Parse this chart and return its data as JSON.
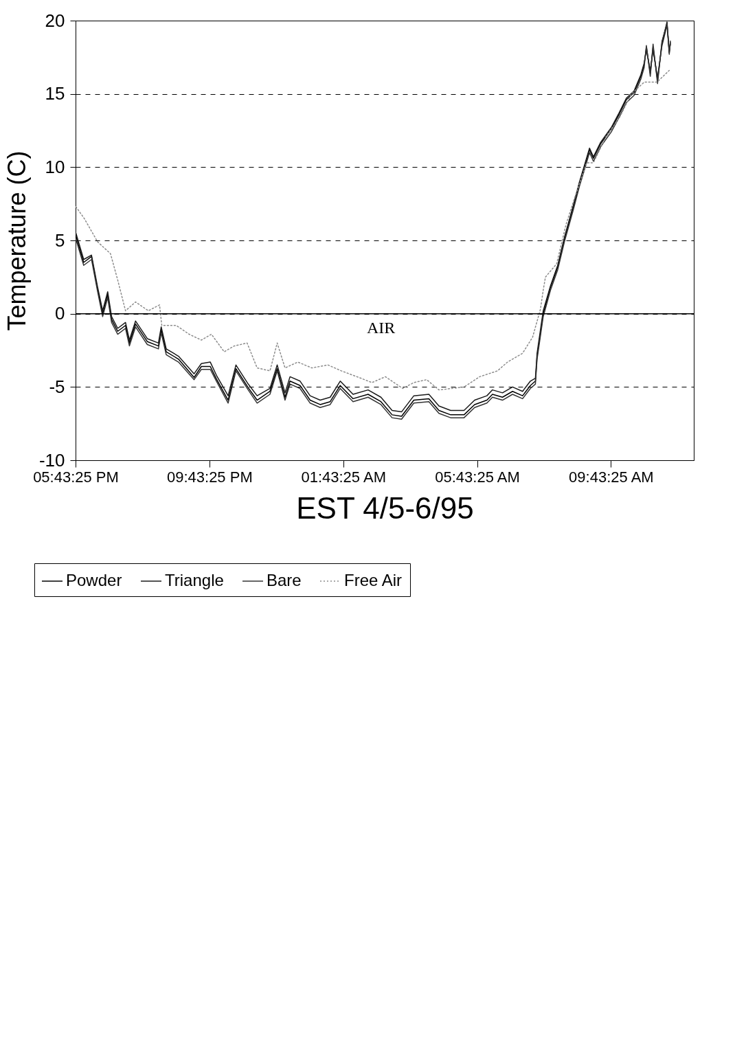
{
  "chart_data": {
    "type": "line",
    "xlabel": "EST 4/5-6/95",
    "ylabel": "Temperature (C)",
    "annotations": [
      "AIR"
    ],
    "x": [
      "--04-05T17:44",
      "--04-05T17:58",
      "--04-05T18:12",
      "--04-05T18:23",
      "--04-05T18:32",
      "--04-05T18:41",
      "--04-05T18:48",
      "--04-05T18:59",
      "--04-05T19:13",
      "--04-05T19:20",
      "--04-05T19:31",
      "--04-05T19:52",
      "--04-05T20:12",
      "--04-05T20:17",
      "--04-05T20:26",
      "--04-05T20:48",
      "--04-05T21:16",
      "--04-05T21:29",
      "--04-05T21:45",
      "--04-05T21:56",
      "--04-05T22:17",
      "--04-05T22:31",
      "--04-05T22:53",
      "--04-05T23:09",
      "--04-05T23:32",
      "--04-05T23:45",
      "--04-05T23:59",
      "--04-06T00:08",
      "--04-06T00:26",
      "--04-06T00:44",
      "--04-06T01:02",
      "--04-06T01:20",
      "--04-06T01:38",
      "--04-06T02:01",
      "--04-06T02:28",
      "--04-06T02:51",
      "--04-06T03:11",
      "--04-06T03:28",
      "--04-06T03:50",
      "--04-06T04:17",
      "--04-06T04:35",
      "--04-06T04:56",
      "--04-06T05:20",
      "--04-06T05:39",
      "--04-06T06:01",
      "--04-06T06:11",
      "--04-06T06:29",
      "--04-06T06:47",
      "--04-06T07:05",
      "--04-06T07:19",
      "--04-06T07:28",
      "--04-06T07:31",
      "--04-06T07:42",
      "--04-06T07:55",
      "--04-06T08:08",
      "--04-06T08:20",
      "--04-06T08:36",
      "--04-06T08:47",
      "--04-06T08:55",
      "--04-06T09:05",
      "--04-06T09:12",
      "--04-06T09:25",
      "--04-06T09:44",
      "--04-06T09:58",
      "--04-06T10:11",
      "--04-06T10:25",
      "--04-06T10:37",
      "--04-06T10:43",
      "--04-06T10:47",
      "--04-06T10:54",
      "--04-06T10:59",
      "--04-06T11:07",
      "--04-06T11:15",
      "--04-06T11:24",
      "--04-06T11:28",
      "--04-06T11:30"
    ],
    "series": [
      {
        "name": "Powder",
        "color": "#000000",
        "values": [
          5.3,
          3.5,
          3.9,
          1.65,
          0.0,
          1.3,
          -0.4,
          -1.2,
          -0.8,
          -2.0,
          -0.7,
          -1.9,
          -2.2,
          -1.1,
          -2.6,
          -3.1,
          -4.35,
          -3.6,
          -3.6,
          -4.45,
          -5.9,
          -3.75,
          -5.05,
          -5.9,
          -5.3,
          -3.75,
          -5.7,
          -4.6,
          -4.9,
          -5.9,
          -6.2,
          -6.0,
          -4.9,
          -5.8,
          -5.5,
          -6.0,
          -6.9,
          -7.0,
          -5.9,
          -5.8,
          -6.6,
          -6.9,
          -6.9,
          -6.2,
          -5.9,
          -5.5,
          -5.7,
          -5.3,
          -5.6,
          -4.9,
          -4.6,
          -2.9,
          0.0,
          1.8,
          3.2,
          5.1,
          7.3,
          8.9,
          9.9,
          11.2,
          10.6,
          11.6,
          12.6,
          13.6,
          14.6,
          15.1,
          16.2,
          17.0,
          18.2,
          16.4,
          18.2,
          15.9,
          18.5,
          19.9,
          17.8,
          18.5
        ]
      },
      {
        "name": "Triangle",
        "color": "#1a1a1a",
        "values": [
          5.5,
          3.7,
          4.0,
          1.8,
          0.2,
          1.5,
          -0.2,
          -1.0,
          -0.6,
          -1.8,
          -0.5,
          -1.7,
          -2.0,
          -0.9,
          -2.4,
          -2.9,
          -4.1,
          -3.4,
          -3.3,
          -4.2,
          -5.6,
          -3.5,
          -4.8,
          -5.6,
          -5.1,
          -3.5,
          -5.4,
          -4.3,
          -4.6,
          -5.6,
          -5.9,
          -5.7,
          -4.6,
          -5.5,
          -5.2,
          -5.7,
          -6.6,
          -6.7,
          -5.6,
          -5.5,
          -6.3,
          -6.6,
          -6.6,
          -5.9,
          -5.6,
          -5.2,
          -5.4,
          -5.0,
          -5.3,
          -4.6,
          -4.4,
          -2.7,
          0.2,
          1.9,
          3.3,
          5.2,
          7.4,
          9.0,
          10.0,
          11.3,
          10.7,
          11.7,
          12.7,
          13.7,
          14.7,
          15.2,
          16.3,
          17.1,
          18.0,
          16.6,
          18.0,
          16.1,
          18.3,
          19.7,
          17.9,
          18.4
        ]
      },
      {
        "name": "Bare",
        "color": "#333333",
        "values": [
          5.1,
          3.3,
          3.7,
          1.5,
          -0.2,
          1.1,
          -0.6,
          -1.4,
          -1.0,
          -2.2,
          -0.9,
          -2.1,
          -2.4,
          -1.3,
          -2.8,
          -3.3,
          -4.5,
          -3.8,
          -3.8,
          -4.6,
          -6.1,
          -3.9,
          -5.2,
          -6.1,
          -5.5,
          -3.9,
          -5.9,
          -4.8,
          -5.1,
          -6.1,
          -6.4,
          -6.2,
          -5.1,
          -6.0,
          -5.7,
          -6.2,
          -7.1,
          -7.2,
          -6.1,
          -6.0,
          -6.8,
          -7.1,
          -7.1,
          -6.4,
          -6.1,
          -5.7,
          -5.9,
          -5.5,
          -5.8,
          -5.1,
          -4.8,
          -3.1,
          -0.2,
          1.6,
          3.0,
          4.9,
          7.1,
          8.7,
          9.7,
          11.0,
          10.4,
          11.4,
          12.4,
          13.4,
          14.4,
          14.9,
          16.0,
          16.8,
          18.3,
          16.2,
          18.4,
          15.7,
          18.6,
          19.8,
          17.7,
          18.6
        ]
      },
      {
        "name": "Free Air",
        "color": "#8c8c8c",
        "line_style": "dotted",
        "x": [
          "--04-05T17:44",
          "--04-05T17:59",
          "--04-05T18:23",
          "--04-05T18:46",
          "--04-05T18:59",
          "--04-05T19:13",
          "--04-05T19:31",
          "--04-05T19:54",
          "--04-05T20:14",
          "--04-05T20:18",
          "--04-05T20:44",
          "--04-05T21:07",
          "--04-05T21:29",
          "--04-05T21:47",
          "--04-05T22:10",
          "--04-05T22:28",
          "--04-05T22:51",
          "--04-05T23:09",
          "--04-05T23:32",
          "--04-05T23:45",
          "--04-05T23:59",
          "--04-06T00:22",
          "--04-06T00:47",
          "--04-06T01:16",
          "--04-06T01:40",
          "--04-06T02:08",
          "--04-06T02:35",
          "--04-06T02:59",
          "--04-06T03:30",
          "--04-06T03:50",
          "--04-06T04:13",
          "--04-06T04:35",
          "--04-06T04:58",
          "--04-06T05:20",
          "--04-06T05:48",
          "--04-06T06:20",
          "--04-06T06:38",
          "--04-06T07:05",
          "--04-06T07:23",
          "--04-06T07:37",
          "--04-06T07:42",
          "--04-06T07:46",
          "--04-06T08:06",
          "--04-06T08:23",
          "--04-06T08:40",
          "--04-06T09:00",
          "--04-06T09:12",
          "--04-06T09:35",
          "--04-06T09:59",
          "--04-06T10:20",
          "--04-06T10:43",
          "--04-06T11:06",
          "--04-06T11:28"
        ],
        "values": [
          7.3,
          6.5,
          4.9,
          4.1,
          2.3,
          0.2,
          0.8,
          0.2,
          0.6,
          -0.8,
          -0.8,
          -1.4,
          -1.8,
          -1.4,
          -2.6,
          -2.2,
          -2.0,
          -3.7,
          -3.9,
          -2.0,
          -3.7,
          -3.3,
          -3.7,
          -3.5,
          -3.9,
          -4.3,
          -4.7,
          -4.3,
          -5.1,
          -4.7,
          -4.5,
          -5.2,
          -5.1,
          -5.0,
          -4.3,
          -3.9,
          -3.3,
          -2.7,
          -1.6,
          0.3,
          1.6,
          2.5,
          3.4,
          6.1,
          8.1,
          10.3,
          10.3,
          12.1,
          13.4,
          15.0,
          15.8,
          15.8,
          16.6
        ]
      }
    ],
    "xlim": [
      "--04-05T17:43:25",
      "--04-06T12:12"
    ],
    "xticks": [
      {
        "value": "--04-05T17:43:25",
        "label": "05:43:25 PM"
      },
      {
        "value": "--04-05T21:43:25",
        "label": "09:43:25 PM"
      },
      {
        "value": "--04-06T01:43:25",
        "label": "01:43:25 AM"
      },
      {
        "value": "--04-06T05:43:25",
        "label": "05:43:25 AM"
      },
      {
        "value": "--04-06T09:43:25",
        "label": "09:43:25 AM"
      }
    ],
    "ylim": [
      -10,
      20
    ],
    "yticks": [
      -10,
      -5,
      0,
      5,
      10,
      15,
      20
    ],
    "ref_lines": [
      {
        "axis": "y",
        "value": 0
      }
    ],
    "grid": "y",
    "legend": "bottom left"
  }
}
